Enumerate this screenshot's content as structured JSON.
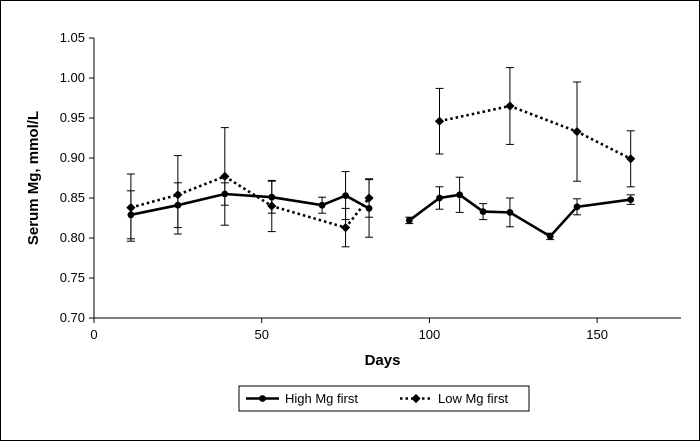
{
  "chart_data": {
    "type": "line",
    "title": "",
    "xlabel": "Days",
    "ylabel": "Serum Mg, mmol/L",
    "xlim": [
      0,
      175
    ],
    "ylim": [
      0.7,
      1.05
    ],
    "x_ticks": [
      0,
      50,
      100,
      150
    ],
    "y_ticks": [
      "0.70",
      "0.75",
      "0.80",
      "0.85",
      "0.90",
      "0.95",
      "1.00",
      "1.05"
    ],
    "x_tick_labels": [
      "0",
      "50",
      "100",
      "150"
    ],
    "grid": false,
    "legend_position": "bottom",
    "series": [
      {
        "name": "High Mg first",
        "line_style": "solid",
        "marker": "circle",
        "color": "#000000",
        "segments": [
          {
            "x": [
              11,
              25,
              39,
              53,
              68,
              75,
              82
            ],
            "y": [
              0.829,
              0.841,
              0.855,
              0.851,
              0.841,
              0.853,
              0.837
            ],
            "err": [
              0.03,
              0.028,
              0.014,
              0.02,
              0.01,
              0.03,
              0.036
            ]
          },
          {
            "x": [
              94,
              103,
              109,
              116,
              124,
              136,
              144,
              160
            ],
            "y": [
              0.822,
              0.85,
              0.854,
              0.833,
              0.832,
              0.802,
              0.839,
              0.848
            ],
            "err": [
              0.004,
              0.014,
              0.022,
              0.01,
              0.018,
              0.004,
              0.01,
              0.006
            ]
          }
        ]
      },
      {
        "name": "Low Mg first",
        "line_style": "dotted",
        "marker": "diamond",
        "color": "#000000",
        "segments": [
          {
            "x": [
              11,
              25,
              39,
              53,
              75,
              82
            ],
            "y": [
              0.838,
              0.854,
              0.877,
              0.84,
              0.813,
              0.85
            ],
            "err": [
              0.042,
              0.049,
              0.061,
              0.032,
              0.024,
              0.024
            ]
          },
          {
            "x": [
              103,
              124,
              144,
              160
            ],
            "y": [
              0.946,
              0.965,
              0.933,
              0.899
            ],
            "err": [
              0.041,
              0.048,
              0.062,
              0.035
            ]
          }
        ]
      }
    ]
  }
}
